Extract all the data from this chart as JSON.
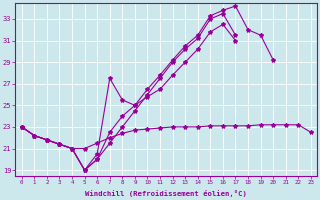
{
  "xlabel": "Windchill (Refroidissement éolien,°C)",
  "bg_color": "#cce8ec",
  "line_color": "#990099",
  "ylim": [
    18.5,
    34.5
  ],
  "xlim": [
    -0.5,
    23.5
  ],
  "yticks": [
    19,
    21,
    23,
    25,
    27,
    29,
    31,
    33
  ],
  "xticks": [
    0,
    1,
    2,
    3,
    4,
    5,
    6,
    7,
    8,
    9,
    10,
    11,
    12,
    13,
    14,
    15,
    16,
    17,
    18,
    19,
    20,
    21,
    22,
    23
  ],
  "line1_x": [
    0,
    1,
    2,
    3,
    4,
    5,
    6,
    7,
    8,
    9,
    10,
    11,
    12,
    13,
    14,
    15,
    16,
    17,
    18,
    19,
    20,
    21,
    22,
    23
  ],
  "line1_y": [
    23.0,
    22.2,
    21.8,
    21.4,
    21.0,
    21.0,
    21.5,
    22.0,
    22.4,
    22.7,
    22.8,
    22.9,
    23.0,
    23.0,
    23.0,
    23.1,
    23.1,
    23.1,
    23.1,
    23.2,
    23.2,
    23.2,
    23.2,
    22.5
  ],
  "line2_x": [
    0,
    1,
    2,
    3,
    4,
    5,
    6,
    7,
    8,
    9,
    10,
    11,
    12,
    13,
    14,
    15,
    16,
    17,
    18,
    19,
    20,
    21,
    22,
    23
  ],
  "line2_y": [
    23.0,
    22.2,
    21.8,
    21.4,
    21.0,
    19.0,
    20.0,
    21.5,
    23.0,
    24.5,
    26.0,
    27.5,
    29.0,
    30.2,
    31.2,
    33.0,
    33.5,
    31.5,
    null,
    null,
    null,
    null,
    null,
    null
  ],
  "line3_x": [
    0,
    1,
    2,
    3,
    4,
    5,
    6,
    7,
    8,
    9,
    10,
    11,
    12,
    13,
    14,
    15,
    16,
    17,
    18,
    19,
    20,
    21,
    22,
    23
  ],
  "line3_y": [
    23.0,
    22.2,
    21.8,
    21.4,
    21.0,
    19.0,
    20.0,
    22.5,
    24.0,
    25.0,
    26.5,
    27.8,
    29.2,
    30.5,
    31.5,
    33.3,
    33.8,
    34.2,
    32.0,
    31.5,
    29.2,
    null,
    null,
    null
  ],
  "line4_x": [
    0,
    1,
    2,
    3,
    4,
    5,
    6,
    7,
    8,
    9,
    10,
    11,
    12,
    13,
    14,
    15,
    16,
    17,
    18,
    19,
    20,
    21,
    22,
    23
  ],
  "line4_y": [
    23.0,
    22.2,
    21.8,
    21.4,
    21.0,
    19.0,
    20.5,
    27.5,
    25.5,
    25.0,
    25.8,
    26.5,
    27.8,
    29.0,
    30.2,
    31.8,
    32.5,
    31.0,
    null,
    null,
    null,
    null,
    null,
    null
  ]
}
